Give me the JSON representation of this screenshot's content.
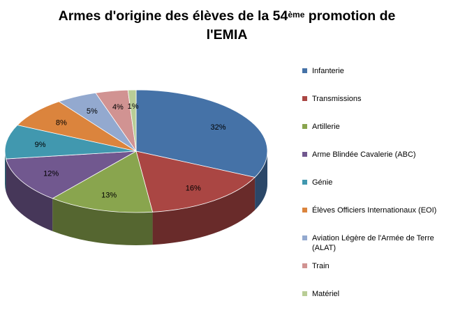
{
  "chart_data": {
    "type": "pie",
    "title_main": "Armes d'origine des élèves de la 54",
    "title_sup": "ème",
    "title_rest": " promotion de",
    "title_line2": "l'EMIA",
    "slices": [
      {
        "name": "Infanterie",
        "value": 32,
        "label": "32%",
        "color": "#4572A7"
      },
      {
        "name": "Transmissions",
        "value": 16,
        "label": "16%",
        "color": "#AA4643"
      },
      {
        "name": "Artillerie",
        "value": 13,
        "label": "13%",
        "color": "#89A54E"
      },
      {
        "name": "Arme Blindée Cavalerie (ABC)",
        "value": 12,
        "label": "12%",
        "color": "#71588F"
      },
      {
        "name": "Génie",
        "value": 9,
        "label": "9%",
        "color": "#4198AF"
      },
      {
        "name": "Élèves Officiers Internationaux (EOI)",
        "value": 8,
        "label": "8%",
        "color": "#DB843D"
      },
      {
        "name": "Aviation Légère de l'Armée de Terre (ALAT)",
        "value": 5,
        "label": "5%",
        "color": "#93A9CF"
      },
      {
        "name": "Train",
        "value": 4,
        "label": "4%",
        "color": "#D19392"
      },
      {
        "name": "Matériel",
        "value": 1,
        "label": "1%",
        "color": "#B9CD96"
      }
    ],
    "legend_position": "right"
  }
}
